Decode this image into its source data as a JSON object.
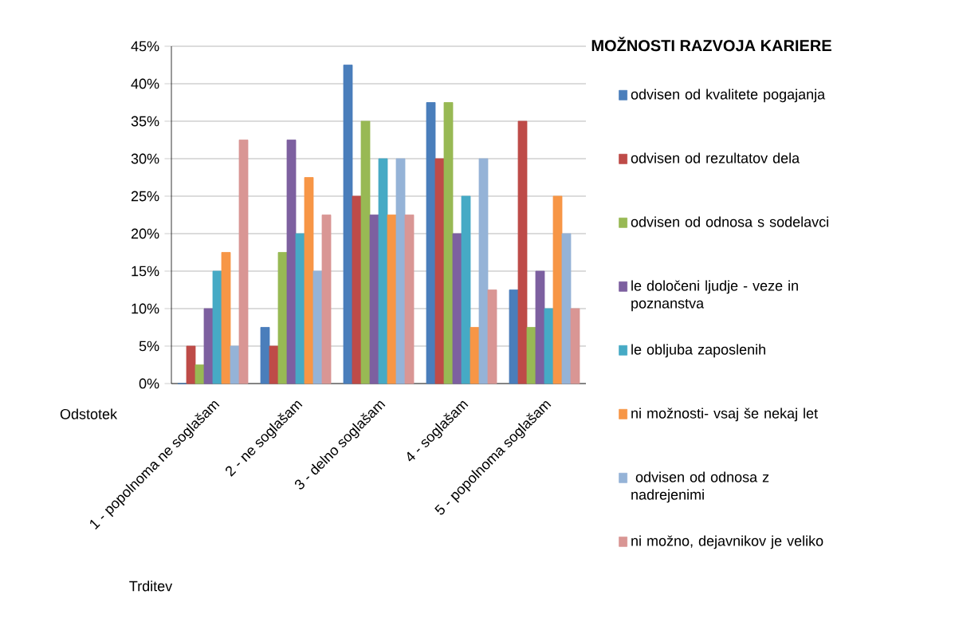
{
  "chart_data": {
    "type": "bar",
    "legend_title": "MOŽNOSTI RAZVOJA KARIERE",
    "xlabel": "Trditev",
    "ylabel": "Odstotek",
    "categories": [
      "1 - popolnoma ne soglašam",
      "2 -  ne soglašam",
      "3 - delno soglašam",
      "4 - soglašam",
      "5 - popolnoma soglašam"
    ],
    "series": [
      {
        "name": "odvisen od kvalitete pogajanja",
        "color": "#4a7ebb",
        "values": [
          0,
          7.5,
          42.5,
          37.5,
          12.5
        ]
      },
      {
        "name": "odvisen od rezultatov dela",
        "color": "#be4b48",
        "values": [
          5,
          5,
          25,
          30,
          35
        ]
      },
      {
        "name": "odvisen od odnosa s sodelavci",
        "color": "#98b954",
        "values": [
          2.5,
          17.5,
          35,
          37.5,
          7.5
        ]
      },
      {
        "name": "le določeni ljudje - veze in poznanstva",
        "color": "#7d60a0",
        "values": [
          10,
          32.5,
          22.5,
          20,
          15
        ]
      },
      {
        "name": "le obljuba zaposlenih",
        "color": "#46aac5",
        "values": [
          15,
          20,
          30,
          25,
          10
        ]
      },
      {
        "name": "ni možnosti- vsaj še nekaj let",
        "color": "#f79646",
        "values": [
          17.5,
          27.5,
          22.5,
          7.5,
          25
        ]
      },
      {
        "name": " odvisen od odnosa z nadrejenimi",
        "color": "#95b3d7",
        "values": [
          5,
          15,
          30,
          30,
          20
        ]
      },
      {
        "name": "ni možno, dejavnikov je veliko",
        "color": "#d99694",
        "values": [
          32.5,
          22.5,
          22.5,
          12.5,
          10
        ]
      }
    ],
    "ylim": [
      0,
      45
    ],
    "yticks": [
      {
        "value": 0,
        "label": "0%"
      },
      {
        "value": 5,
        "label": "5%"
      },
      {
        "value": 10,
        "label": "10%"
      },
      {
        "value": 15,
        "label": "15%"
      },
      {
        "value": 20,
        "label": "20%"
      },
      {
        "value": 25,
        "label": "25%"
      },
      {
        "value": 30,
        "label": "30%"
      },
      {
        "value": 35,
        "label": "35%"
      },
      {
        "value": 40,
        "label": "40%"
      },
      {
        "value": 45,
        "label": "45%"
      }
    ],
    "grid": "y",
    "legend": "right"
  }
}
